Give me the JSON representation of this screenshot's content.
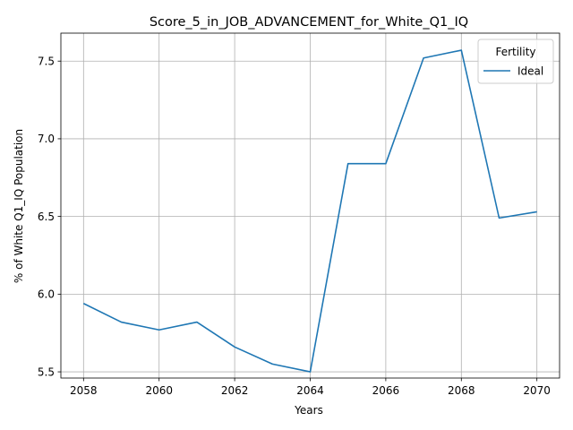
{
  "chart_data": {
    "type": "line",
    "title": "Score_5_in_JOB_ADVANCEMENT_for_White_Q1_IQ",
    "xlabel": "Years",
    "ylabel": "% of White Q1_IQ Population",
    "x": [
      2058,
      2059,
      2060,
      2061,
      2062,
      2063,
      2064,
      2065,
      2066,
      2067,
      2068,
      2069,
      2070
    ],
    "series": [
      {
        "name": "Ideal",
        "color": "#1f77b4",
        "values": [
          5.94,
          5.82,
          5.77,
          5.82,
          5.66,
          5.55,
          5.5,
          6.84,
          6.84,
          7.52,
          7.57,
          6.49,
          6.53
        ]
      }
    ],
    "xlim": [
      2057.4,
      2070.6
    ],
    "ylim": [
      5.46,
      7.68
    ],
    "xticks": [
      "2058",
      "2060",
      "2062",
      "2064",
      "2066",
      "2068",
      "2070"
    ],
    "yticks": [
      "5.5",
      "6.0",
      "6.5",
      "7.0",
      "7.5"
    ],
    "grid": true,
    "legend": {
      "title": "Fertility",
      "placement": "top-right"
    }
  }
}
